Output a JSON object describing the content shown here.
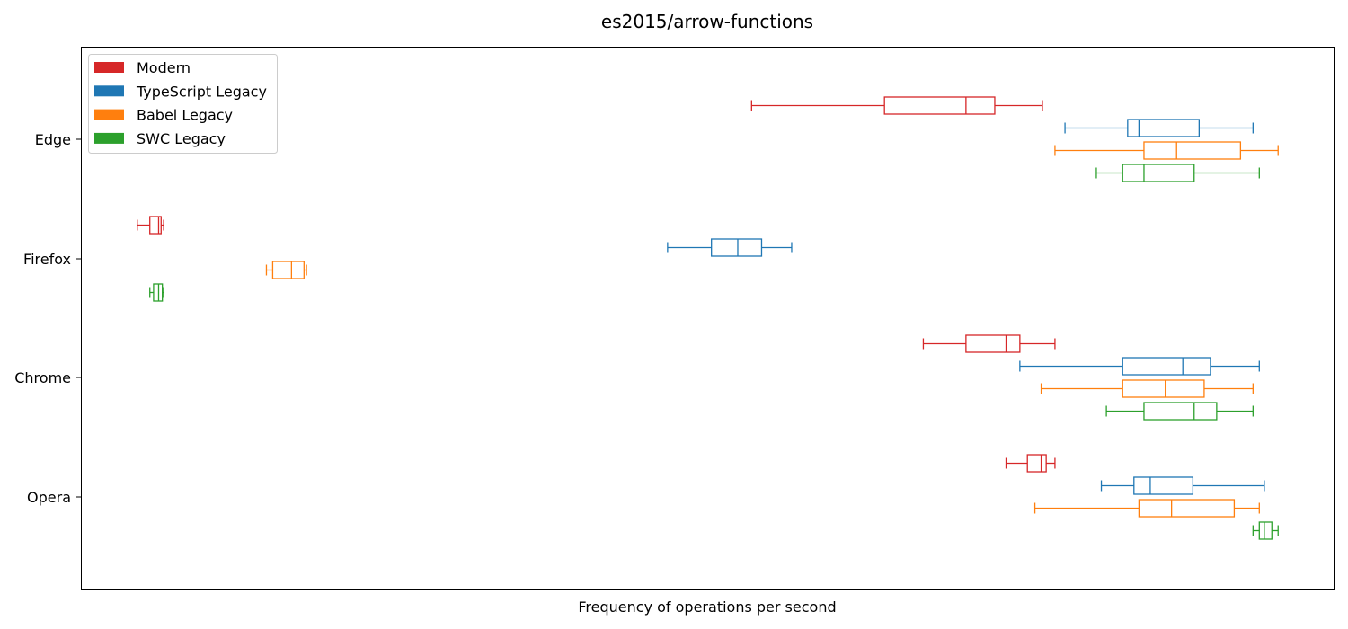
{
  "chart_data": {
    "type": "boxplot",
    "orientation": "horizontal",
    "title": "es2015/arrow-functions",
    "xlabel": "Frequency of operations per second",
    "ylabel": "",
    "x_ticks_shown": false,
    "grid": false,
    "legend_position": "upper-left",
    "categories": [
      "Edge",
      "Firefox",
      "Chrome",
      "Opera"
    ],
    "series": [
      {
        "name": "Modern",
        "color": "#d62728",
        "boxes": [
          {
            "min": 0.535,
            "q1": 0.641,
            "median": 0.706,
            "q3": 0.729,
            "max": 0.767
          },
          {
            "min": 0.045,
            "q1": 0.055,
            "median": 0.062,
            "q3": 0.064,
            "max": 0.066
          },
          {
            "min": 0.672,
            "q1": 0.706,
            "median": 0.738,
            "q3": 0.749,
            "max": 0.777
          },
          {
            "min": 0.738,
            "q1": 0.755,
            "median": 0.766,
            "q3": 0.77,
            "max": 0.777
          }
        ]
      },
      {
        "name": "TypeScript Legacy",
        "color": "#1f77b4",
        "boxes": [
          {
            "min": 0.785,
            "q1": 0.835,
            "median": 0.844,
            "q3": 0.892,
            "max": 0.935
          },
          {
            "min": 0.468,
            "q1": 0.503,
            "median": 0.524,
            "q3": 0.543,
            "max": 0.567
          },
          {
            "min": 0.749,
            "q1": 0.831,
            "median": 0.879,
            "q3": 0.901,
            "max": 0.94
          },
          {
            "min": 0.814,
            "q1": 0.84,
            "median": 0.853,
            "q3": 0.887,
            "max": 0.944
          }
        ]
      },
      {
        "name": "Babel Legacy",
        "color": "#ff7f0e",
        "boxes": [
          {
            "min": 0.777,
            "q1": 0.848,
            "median": 0.874,
            "q3": 0.925,
            "max": 0.955
          },
          {
            "min": 0.148,
            "q1": 0.153,
            "median": 0.168,
            "q3": 0.178,
            "max": 0.18
          },
          {
            "min": 0.766,
            "q1": 0.831,
            "median": 0.865,
            "q3": 0.896,
            "max": 0.935
          },
          {
            "min": 0.761,
            "q1": 0.844,
            "median": 0.87,
            "q3": 0.92,
            "max": 0.94
          }
        ]
      },
      {
        "name": "SWC Legacy",
        "color": "#2ca02c",
        "boxes": [
          {
            "min": 0.81,
            "q1": 0.831,
            "median": 0.848,
            "q3": 0.888,
            "max": 0.94
          },
          {
            "min": 0.055,
            "q1": 0.058,
            "median": 0.062,
            "q3": 0.065,
            "max": 0.066
          },
          {
            "min": 0.818,
            "q1": 0.848,
            "median": 0.888,
            "q3": 0.906,
            "max": 0.935
          },
          {
            "min": 0.935,
            "q1": 0.94,
            "median": 0.944,
            "q3": 0.95,
            "max": 0.955
          }
        ]
      }
    ]
  }
}
